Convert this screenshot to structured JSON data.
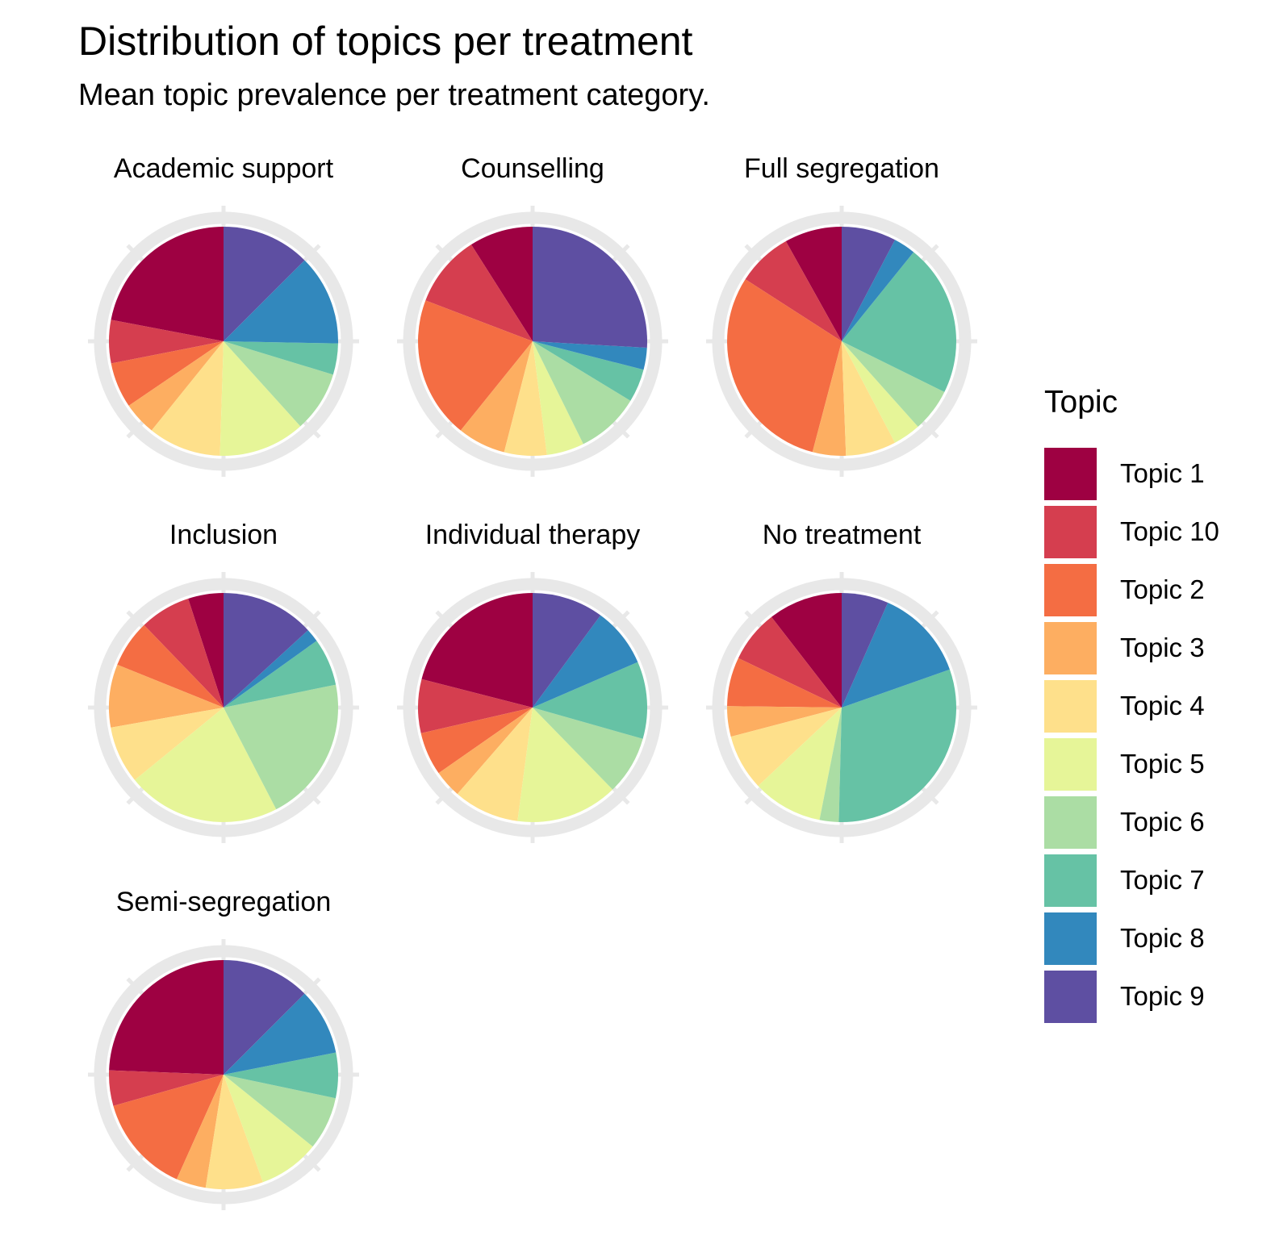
{
  "title": "Distribution of topics per treatment",
  "subtitle": "Mean topic prevalence per treatment category.",
  "legend": {
    "title": "Topic"
  },
  "chart_data": {
    "type": "pie",
    "layout": {
      "facet_grid_columns": 3,
      "legend_position": "right",
      "slice_direction": "counterclockwise-from-top",
      "polar_grid_color": "#E8E8E8"
    },
    "topics": [
      "Topic 1",
      "Topic 10",
      "Topic 2",
      "Topic 3",
      "Topic 4",
      "Topic 5",
      "Topic 6",
      "Topic 7",
      "Topic 8",
      "Topic 9"
    ],
    "colors": [
      "#9E0142",
      "#D53E4F",
      "#F46D43",
      "#FDAE61",
      "#FEE08B",
      "#E6F598",
      "#ABDDA4",
      "#66C2A5",
      "#3288BD",
      "#5E4FA2"
    ],
    "facets": [
      {
        "treatment": "Academic support",
        "values": [
          22.0,
          6.1,
          6.4,
          4.7,
          10.3,
          12.2,
          8.6,
          4.4,
          12.8,
          12.5
        ]
      },
      {
        "treatment": "Counselling",
        "values": [
          9.0,
          10.2,
          20.0,
          6.8,
          6.0,
          5.3,
          9.0,
          4.7,
          3.1,
          25.9
        ]
      },
      {
        "treatment": "Full segregation",
        "values": [
          8.1,
          7.8,
          30.0,
          4.7,
          7.1,
          3.9,
          6.1,
          21.5,
          3.1,
          7.7
        ]
      },
      {
        "treatment": "Inclusion",
        "values": [
          5.0,
          7.2,
          6.7,
          8.9,
          8.1,
          21.7,
          20.6,
          6.7,
          1.9,
          13.2
        ]
      },
      {
        "treatment": "Individual therapy",
        "values": [
          21.0,
          7.6,
          6.1,
          3.9,
          9.3,
          14.4,
          8.3,
          10.9,
          8.4,
          10.1
        ]
      },
      {
        "treatment": "No treatment",
        "values": [
          10.5,
          7.4,
          6.9,
          4.3,
          7.9,
          9.9,
          2.7,
          30.8,
          13.0,
          6.6
        ]
      },
      {
        "treatment": "Semi-segregation",
        "values": [
          24.4,
          5.0,
          13.9,
          4.2,
          8.1,
          8.6,
          7.5,
          6.4,
          9.4,
          12.5
        ]
      }
    ]
  }
}
